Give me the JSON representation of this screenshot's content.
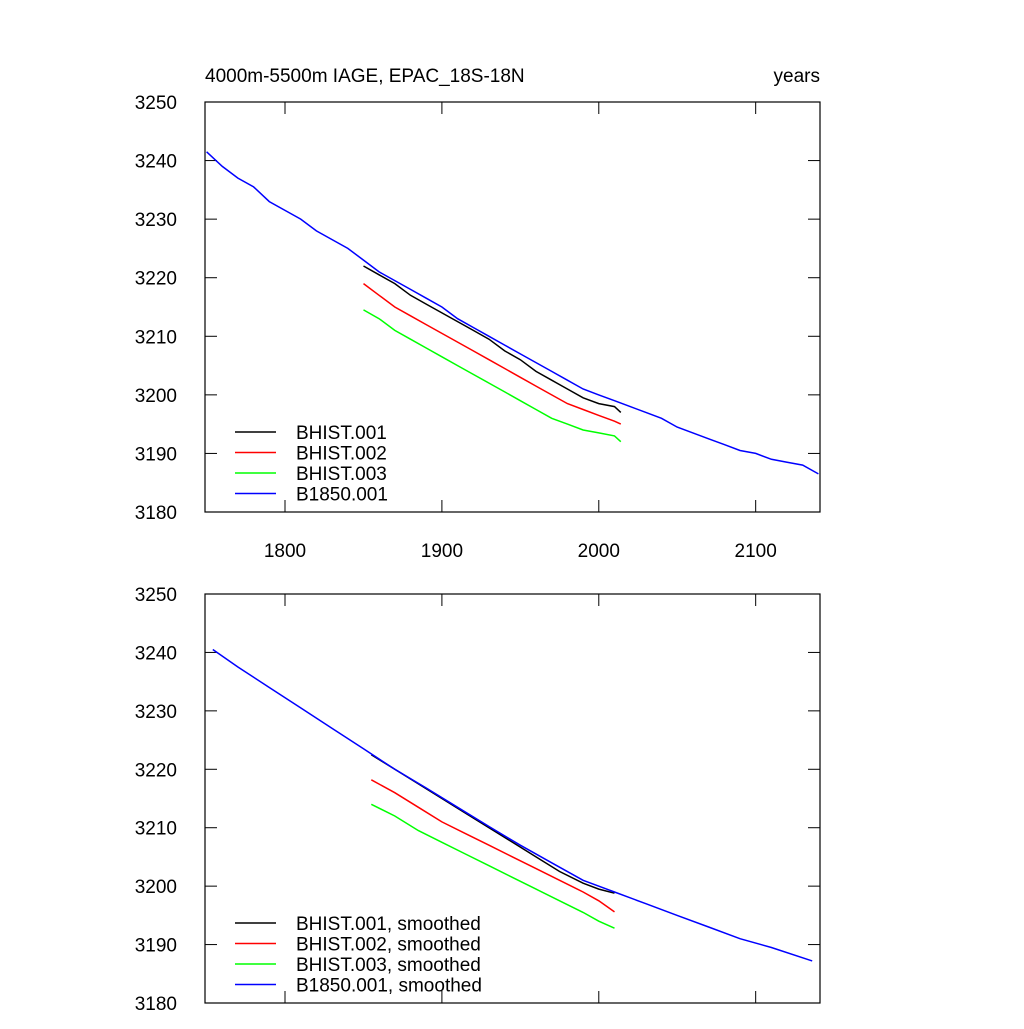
{
  "chart_data": [
    {
      "type": "line",
      "title": "4000m-5500m IAGE, EPAC_18S-18N",
      "subtitle": "years",
      "xlim": [
        1749,
        2141
      ],
      "xticks": [
        1800,
        1900,
        2000,
        2100
      ],
      "x_tick_labels": true,
      "ylim": [
        3180,
        3250
      ],
      "yticks": [
        3180,
        3190,
        3200,
        3210,
        3220,
        3230,
        3240,
        3250
      ],
      "legend": "lower left",
      "series": [
        {
          "name": "BHIST.001",
          "color": "#000000",
          "x": [
            1850,
            1860,
            1870,
            1880,
            1890,
            1900,
            1910,
            1920,
            1930,
            1940,
            1950,
            1960,
            1970,
            1980,
            1990,
            2000,
            2010,
            2014
          ],
          "values": [
            3222,
            3220.5,
            3219,
            3217,
            3215.5,
            3214,
            3212.5,
            3211,
            3209.5,
            3207.5,
            3206,
            3204,
            3202.5,
            3201,
            3199.5,
            3198.5,
            3198,
            3197
          ]
        },
        {
          "name": "BHIST.002",
          "color": "#ff0000",
          "x": [
            1850,
            1860,
            1870,
            1880,
            1890,
            1900,
            1910,
            1920,
            1930,
            1940,
            1950,
            1960,
            1970,
            1980,
            1990,
            2000,
            2010,
            2014
          ],
          "values": [
            3219,
            3217,
            3215,
            3213.5,
            3212,
            3210.5,
            3209,
            3207.5,
            3206,
            3204.5,
            3203,
            3201.5,
            3200,
            3198.5,
            3197.5,
            3196.5,
            3195.5,
            3195
          ]
        },
        {
          "name": "BHIST.003",
          "color": "#00ff00",
          "x": [
            1850,
            1860,
            1870,
            1880,
            1890,
            1900,
            1910,
            1920,
            1930,
            1940,
            1950,
            1960,
            1970,
            1980,
            1990,
            2000,
            2010,
            2014
          ],
          "values": [
            3214.5,
            3213,
            3211,
            3209.5,
            3208,
            3206.5,
            3205,
            3203.5,
            3202,
            3200.5,
            3199,
            3197.5,
            3196,
            3195,
            3194,
            3193.5,
            3193,
            3192
          ]
        },
        {
          "name": "B1850.001",
          "color": "#0000ff",
          "x": [
            1750,
            1760,
            1770,
            1780,
            1790,
            1800,
            1810,
            1820,
            1830,
            1840,
            1850,
            1860,
            1870,
            1880,
            1890,
            1900,
            1910,
            1920,
            1930,
            1940,
            1950,
            1960,
            1970,
            1980,
            1990,
            2000,
            2010,
            2020,
            2030,
            2040,
            2050,
            2060,
            2070,
            2080,
            2090,
            2100,
            2110,
            2120,
            2130,
            2140
          ],
          "values": [
            3241.5,
            3239,
            3237,
            3235.5,
            3233,
            3231.5,
            3230,
            3228,
            3226.5,
            3225,
            3223,
            3221,
            3219.5,
            3218,
            3216.5,
            3215,
            3213,
            3211.5,
            3210,
            3208.5,
            3207,
            3205.5,
            3204,
            3202.5,
            3201,
            3200,
            3199,
            3198,
            3197,
            3196,
            3194.5,
            3193.5,
            3192.5,
            3191.5,
            3190.5,
            3190,
            3189,
            3188.5,
            3188,
            3186.5
          ]
        }
      ]
    },
    {
      "type": "line",
      "xlim": [
        1749,
        2141
      ],
      "xticks": [
        1800,
        1900,
        2000,
        2100
      ],
      "x_tick_labels": false,
      "ylim": [
        3180,
        3250
      ],
      "yticks": [
        3180,
        3190,
        3200,
        3210,
        3220,
        3230,
        3240,
        3250
      ],
      "legend": "lower left",
      "series": [
        {
          "name": "BHIST.001, smoothed",
          "color": "#000000",
          "x": [
            1855,
            1870,
            1885,
            1900,
            1915,
            1930,
            1945,
            1960,
            1975,
            1990,
            2000,
            2010
          ],
          "values": [
            3222.5,
            3220,
            3217.5,
            3215,
            3212.5,
            3210,
            3207.5,
            3205,
            3202.5,
            3200.5,
            3199.5,
            3198.8
          ]
        },
        {
          "name": "BHIST.002, smoothed",
          "color": "#ff0000",
          "x": [
            1855,
            1870,
            1885,
            1900,
            1915,
            1930,
            1945,
            1960,
            1975,
            1990,
            2000,
            2010
          ],
          "values": [
            3218.2,
            3216,
            3213.5,
            3211,
            3209,
            3207,
            3205,
            3203,
            3201,
            3199,
            3197.5,
            3195.6
          ]
        },
        {
          "name": "BHIST.003, smoothed",
          "color": "#00ff00",
          "x": [
            1855,
            1870,
            1885,
            1900,
            1915,
            1930,
            1945,
            1960,
            1975,
            1990,
            2000,
            2010
          ],
          "values": [
            3214,
            3212,
            3209.5,
            3207.5,
            3205.5,
            3203.5,
            3201.5,
            3199.5,
            3197.5,
            3195.5,
            3194,
            3192.8
          ]
        },
        {
          "name": "B1850.001, smoothed",
          "color": "#0000ff",
          "x": [
            1754,
            1770,
            1790,
            1810,
            1830,
            1850,
            1870,
            1890,
            1910,
            1930,
            1950,
            1970,
            1990,
            2010,
            2030,
            2050,
            2070,
            2090,
            2110,
            2136
          ],
          "values": [
            3240.5,
            3237.5,
            3234,
            3230.5,
            3227,
            3223.5,
            3220,
            3216.8,
            3213.5,
            3210.2,
            3207,
            3204,
            3201,
            3199,
            3197,
            3195,
            3193,
            3191,
            3189.5,
            3187.2
          ]
        }
      ]
    }
  ]
}
